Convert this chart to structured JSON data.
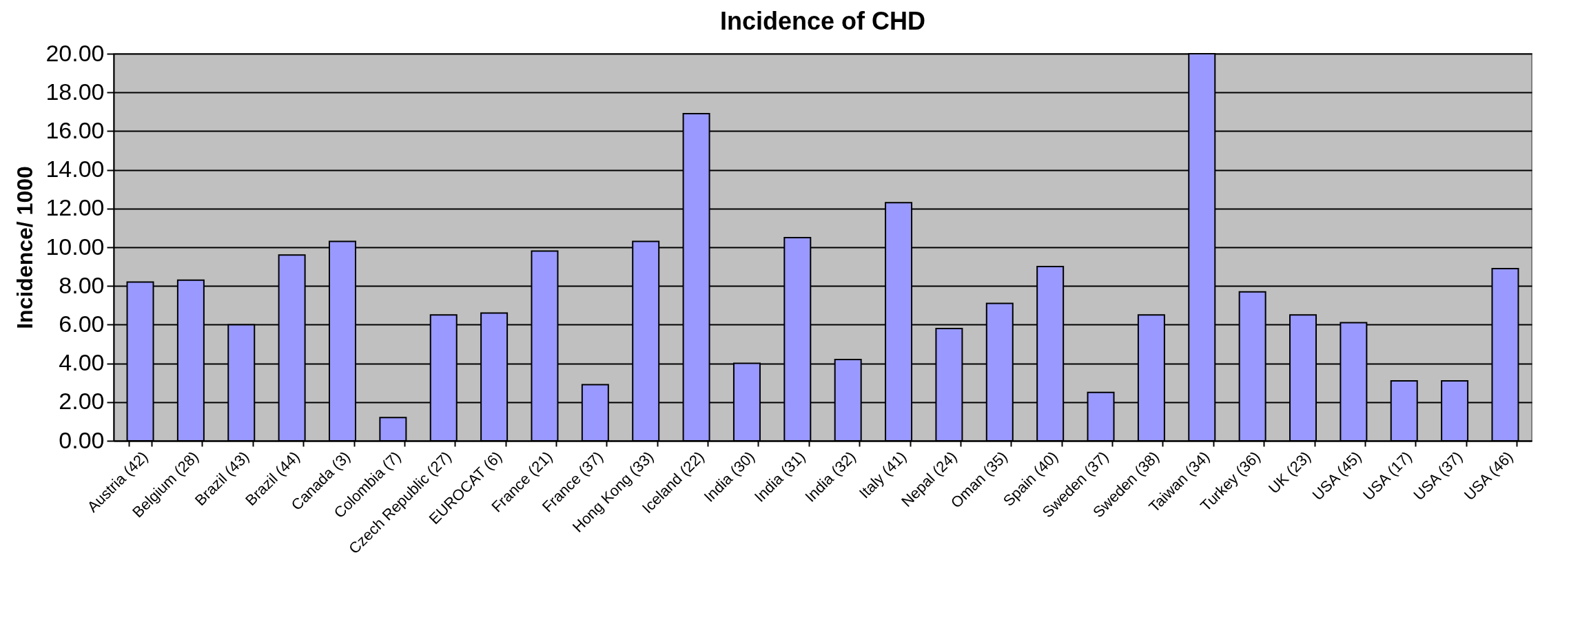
{
  "chart_data": {
    "type": "bar",
    "title": "Incidence of CHD",
    "ylabel": "Incidence/ 1000",
    "categories": [
      "Austria (42)",
      "Belgium (28)",
      "Brazil (43)",
      "Brazil (44)",
      "Canada (3)",
      "Colombia (7)",
      "Czech Republic (27)",
      "EUROCAT (6)",
      "France (21)",
      "France (37)",
      "Hong Kong (33)",
      "Iceland (22)",
      "India (30)",
      "India (31)",
      "India (32)",
      "Italy (41)",
      "Nepal (24)",
      "Oman (35)",
      "Spain (40)",
      "Sweden (37)",
      "Sweden (38)",
      "Taiwan (34)",
      "Turkey (36)",
      "UK (23)",
      "USA (45)",
      "USA (17)",
      "USA (37)",
      "USA (46)"
    ],
    "values": [
      8.2,
      8.3,
      6.0,
      9.6,
      10.3,
      1.2,
      6.5,
      6.6,
      9.8,
      2.9,
      10.3,
      16.9,
      4.0,
      10.5,
      4.2,
      12.3,
      5.8,
      7.1,
      9.0,
      2.5,
      6.5,
      20,
      7.7,
      6.5,
      6.1,
      3.1,
      3.1,
      8.9
    ],
    "color": "#9999ff",
    "ylim": [
      0,
      20
    ],
    "yticks": [
      {
        "value": 0,
        "label": "0.00"
      },
      {
        "value": 2,
        "label": "2.00"
      },
      {
        "value": 4,
        "label": "4.00"
      },
      {
        "value": 6,
        "label": "6.00"
      },
      {
        "value": 8,
        "label": "8.00"
      },
      {
        "value": 10,
        "label": "10.00"
      },
      {
        "value": 12,
        "label": "12.00"
      },
      {
        "value": 14,
        "label": "14.00"
      },
      {
        "value": 16,
        "label": "16.00"
      },
      {
        "value": 18,
        "label": "18.00"
      },
      {
        "value": 20,
        "label": "20.00"
      }
    ],
    "grid": "y"
  }
}
